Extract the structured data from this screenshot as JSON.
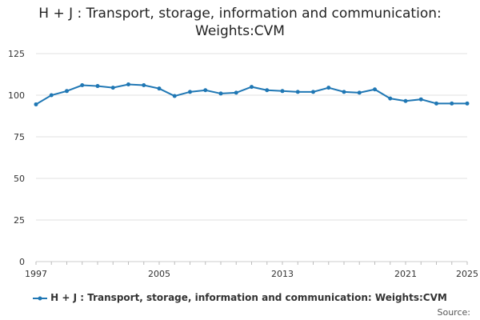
{
  "chart_data": {
    "type": "line",
    "title_line1": "H + J : Transport, storage, information and communication:",
    "title_line2": "Weights:CVM",
    "xlabel": "",
    "ylabel": "",
    "xlim": [
      1997,
      2025
    ],
    "ylim": [
      0,
      125
    ],
    "yticks": [
      0,
      25,
      50,
      75,
      100,
      125
    ],
    "xticks": [
      1997,
      2005,
      2013,
      2021,
      2025
    ],
    "grid": true,
    "legend_position": "bottom",
    "series": [
      {
        "name": "H + J : Transport, storage, information and communication: Weights:CVM",
        "color": "#1f77b4",
        "x": [
          1997,
          1998,
          1999,
          2000,
          2001,
          2002,
          2003,
          2004,
          2005,
          2006,
          2007,
          2008,
          2009,
          2010,
          2011,
          2012,
          2013,
          2014,
          2015,
          2016,
          2017,
          2018,
          2019,
          2020,
          2021,
          2022,
          2023,
          2024,
          2025
        ],
        "values": [
          94.5,
          100,
          102.5,
          106,
          105.5,
          104.5,
          106.5,
          106,
          104,
          99.5,
          102,
          103,
          101,
          101.5,
          105,
          103,
          102.5,
          102,
          102,
          104.5,
          102,
          101.5,
          103.5,
          98,
          96.5,
          97.5,
          95,
          95,
          95
        ]
      }
    ],
    "source_label": "Source:"
  }
}
